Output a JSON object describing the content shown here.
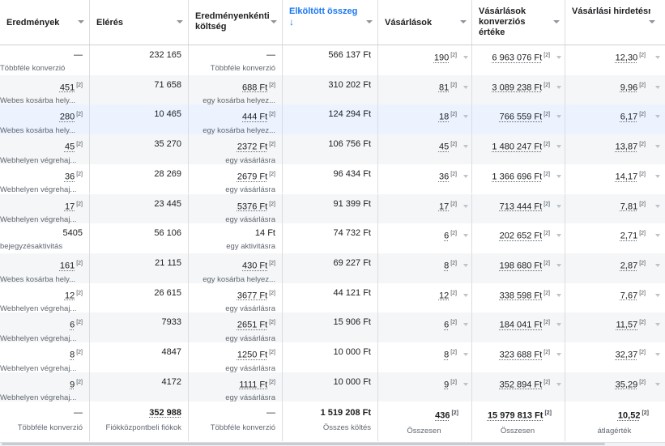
{
  "headers": {
    "results": "Eredmények",
    "reach": "Elérés",
    "cost_per_result": "Eredményenkénti költség",
    "amount_spent": "Elköltött összeg",
    "amount_spent_arrow": "↓",
    "purchases": "Vásárlások",
    "purchase_value": "Vásárlások konverziós értéke",
    "roas": "Vásárlási hirdetésmegtérülés (ROAS)"
  },
  "sort": {
    "column": "amount_spent",
    "direction": "descending"
  },
  "footnote": "[2]",
  "rows": [
    {
      "results": "—",
      "results_sub": "Többféle konverzió",
      "results_link": false,
      "reach": "232 165",
      "cost": "—",
      "cost_sub": "Többféle konverzió",
      "cost_link": false,
      "spent": "566 137 Ft",
      "purchases": "190",
      "value": "6 963 076 Ft",
      "roas": "12,30"
    },
    {
      "results": "451",
      "results_sub": "Webes kosárba hely...",
      "results_link": true,
      "reach": "71 658",
      "cost": "688 Ft",
      "cost_sub": "egy kosárba helyez...",
      "cost_link": true,
      "spent": "310 202 Ft",
      "purchases": "81",
      "value": "3 089 238 Ft",
      "roas": "9,96"
    },
    {
      "results": "280",
      "results_sub": "Webes kosárba hely...",
      "results_link": true,
      "reach": "10 465",
      "cost": "444 Ft",
      "cost_sub": "egy kosárba helyez...",
      "cost_link": true,
      "spent": "124 294 Ft",
      "purchases": "18",
      "value": "766 559 Ft",
      "roas": "6,17"
    },
    {
      "results": "45",
      "results_sub": "Webhelyen végrehaj...",
      "results_link": true,
      "reach": "35 270",
      "cost": "2372 Ft",
      "cost_sub": "egy vásárlásra",
      "cost_link": true,
      "spent": "106 756 Ft",
      "purchases": "45",
      "value": "1 480 247 Ft",
      "roas": "13,87"
    },
    {
      "results": "36",
      "results_sub": "Webhelyen végrehaj...",
      "results_link": true,
      "reach": "28 269",
      "cost": "2679 Ft",
      "cost_sub": "egy vásárlásra",
      "cost_link": true,
      "spent": "96 434 Ft",
      "purchases": "36",
      "value": "1 366 696 Ft",
      "roas": "14,17"
    },
    {
      "results": "17",
      "results_sub": "Webhelyen végrehaj...",
      "results_link": true,
      "reach": "23 445",
      "cost": "5376 Ft",
      "cost_sub": "egy vásárlásra",
      "cost_link": true,
      "spent": "91 399 Ft",
      "purchases": "17",
      "value": "713 444 Ft",
      "roas": "7,81"
    },
    {
      "results": "5405",
      "results_sub": "bejegyzésaktivitás",
      "results_link": false,
      "reach": "56 106",
      "cost": "14 Ft",
      "cost_sub": "egy aktivitásra",
      "cost_link": false,
      "spent": "74 732 Ft",
      "purchases": "6",
      "value": "202 652 Ft",
      "roas": "2,71"
    },
    {
      "results": "161",
      "results_sub": "Webes kosárba hely...",
      "results_link": true,
      "reach": "21 115",
      "cost": "430 Ft",
      "cost_sub": "egy kosárba helyez...",
      "cost_link": true,
      "spent": "69 227 Ft",
      "purchases": "8",
      "value": "198 680 Ft",
      "roas": "2,87"
    },
    {
      "results": "12",
      "results_sub": "Webhelyen végrehaj...",
      "results_link": true,
      "reach": "26 615",
      "cost": "3677 Ft",
      "cost_sub": "egy vásárlásra",
      "cost_link": true,
      "spent": "44 121 Ft",
      "purchases": "12",
      "value": "338 598 Ft",
      "roas": "7,67"
    },
    {
      "results": "6",
      "results_sub": "Webhelyen végrehaj...",
      "results_link": true,
      "reach": "7933",
      "cost": "2651 Ft",
      "cost_sub": "egy vásárlásra",
      "cost_link": true,
      "spent": "15 906 Ft",
      "purchases": "6",
      "value": "184 041 Ft",
      "roas": "11,57"
    },
    {
      "results": "8",
      "results_sub": "Webhelyen végrehaj...",
      "results_link": true,
      "reach": "4847",
      "cost": "1250 Ft",
      "cost_sub": "egy vásárlásra",
      "cost_link": true,
      "spent": "10 000 Ft",
      "purchases": "8",
      "value": "323 688 Ft",
      "roas": "32,37"
    },
    {
      "results": "9",
      "results_sub": "Webhelyen végrehaj...",
      "results_link": true,
      "reach": "4172",
      "cost": "1111 Ft",
      "cost_sub": "egy vásárlásra",
      "cost_link": true,
      "spent": "10 000 Ft",
      "purchases": "9",
      "value": "352 894 Ft",
      "roas": "35,29"
    }
  ],
  "totals": {
    "results": "—",
    "results_sub": "Többféle konverzió",
    "reach": "352 988",
    "reach_sub": "Fiókközpontbeli fiókok",
    "cost": "—",
    "cost_sub": "Többféle konverzió",
    "spent": "1 519 208 Ft",
    "spent_sub": "Összes költés",
    "purchases": "436",
    "purchases_sub": "Összesen",
    "value": "15 979 813 Ft",
    "value_sub": "Összesen",
    "roas": "10,52",
    "roas_sub": "átlagérték"
  },
  "colors": {
    "accent": "#1877f2",
    "row_alt": "#f5f6f7",
    "row_highlight": "#ecf3ff",
    "border": "#dadde1"
  }
}
